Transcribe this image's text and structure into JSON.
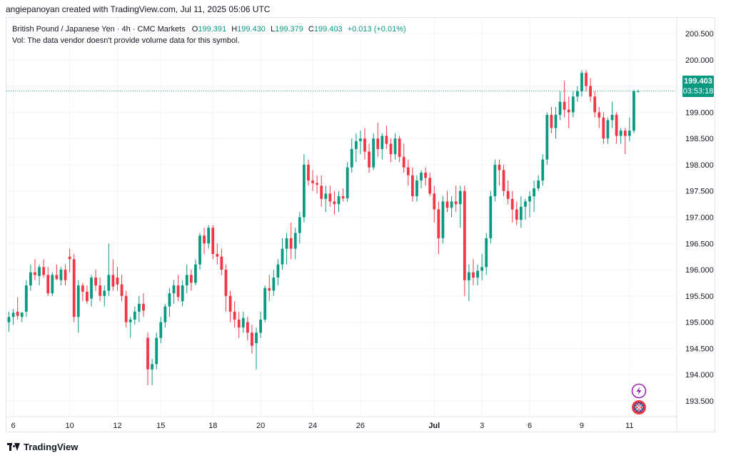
{
  "header": {
    "credit": "angiepanoyan created with TradingView.com, Jul 11, 2025 05:06 UTC"
  },
  "legend": {
    "symbol": "British Pound / Japanese Yen · 4h · CMC Markets",
    "o_label": "O",
    "open": "199.391",
    "h_label": "H",
    "high": "199.430",
    "l_label": "L",
    "low": "199.379",
    "c_label": "C",
    "close": "199.403",
    "change": "+0.013 (+0.01%)",
    "vol_note": "Vol: The data vendor doesn't provide volume data for this symbol."
  },
  "price_label": {
    "price": "199.403",
    "countdown": "03:53:18"
  },
  "footer": {
    "brand": "TradingView"
  },
  "colors": {
    "up": "#089981",
    "down": "#f23645",
    "grid": "#f0f3fa",
    "text": "#131722"
  },
  "icons": {
    "lightning": "lightning-icon",
    "flag": "uk-flag-icon"
  },
  "chart_data": {
    "type": "candlestick",
    "title": "British Pound / Japanese Yen · 4h · CMC Markets",
    "ylim": [
      193.2,
      200.8
    ],
    "y_ticks": [
      "193.500",
      "194.000",
      "194.500",
      "195.000",
      "195.500",
      "196.000",
      "196.500",
      "197.000",
      "197.500",
      "198.000",
      "198.500",
      "199.000",
      "199.500",
      "200.000",
      "200.500"
    ],
    "x_ticks": [
      {
        "label": "6",
        "i": 1
      },
      {
        "label": "10",
        "i": 14
      },
      {
        "label": "12",
        "i": 25
      },
      {
        "label": "15",
        "i": 35
      },
      {
        "label": "18",
        "i": 47
      },
      {
        "label": "20",
        "i": 58
      },
      {
        "label": "24",
        "i": 70
      },
      {
        "label": "26",
        "i": 81
      },
      {
        "label": "Jul",
        "i": 98
      },
      {
        "label": "3",
        "i": 109
      },
      {
        "label": "6",
        "i": 120
      },
      {
        "label": "9",
        "i": 132
      },
      {
        "label": "11",
        "i": 143
      }
    ],
    "last_price": 199.403,
    "candles": [
      [
        195.0,
        195.2,
        194.82,
        195.1
      ],
      [
        195.1,
        195.25,
        194.95,
        195.18
      ],
      [
        195.2,
        195.48,
        195.05,
        195.12
      ],
      [
        195.1,
        195.2,
        195.0,
        195.18
      ],
      [
        195.2,
        195.8,
        195.1,
        195.7
      ],
      [
        195.7,
        196.1,
        195.6,
        195.95
      ],
      [
        195.95,
        196.2,
        195.8,
        195.9
      ],
      [
        195.88,
        196.1,
        195.7,
        196.05
      ],
      [
        196.05,
        196.2,
        195.85,
        195.9
      ],
      [
        195.9,
        196.05,
        195.5,
        195.55
      ],
      [
        195.55,
        195.95,
        195.5,
        195.9
      ],
      [
        195.9,
        196.1,
        195.8,
        195.82
      ],
      [
        195.8,
        196.05,
        195.7,
        196.0
      ],
      [
        196.0,
        196.1,
        195.7,
        195.8
      ],
      [
        196.25,
        196.4,
        195.95,
        196.2
      ],
      [
        196.2,
        196.3,
        195.0,
        195.1
      ],
      [
        195.1,
        195.8,
        194.8,
        195.7
      ],
      [
        195.7,
        195.75,
        195.4,
        195.58
      ],
      [
        195.58,
        195.7,
        195.35,
        195.4
      ],
      [
        195.45,
        195.9,
        195.3,
        195.85
      ],
      [
        195.85,
        196.0,
        195.6,
        195.7
      ],
      [
        195.7,
        195.85,
        195.4,
        195.5
      ],
      [
        195.5,
        195.7,
        195.3,
        195.6
      ],
      [
        195.6,
        196.5,
        195.5,
        195.9
      ],
      [
        195.9,
        196.2,
        195.6,
        195.68
      ],
      [
        195.85,
        196.05,
        195.6,
        195.72
      ],
      [
        195.72,
        195.9,
        195.4,
        195.5
      ],
      [
        195.5,
        195.6,
        194.9,
        195.0
      ],
      [
        195.0,
        195.1,
        194.7,
        195.05
      ],
      [
        195.05,
        195.3,
        194.95,
        195.2
      ],
      [
        195.2,
        195.5,
        195.0,
        195.35
      ],
      [
        195.35,
        195.55,
        195.1,
        195.22
      ],
      [
        194.7,
        194.8,
        193.8,
        194.1
      ],
      [
        194.1,
        194.3,
        193.8,
        194.2
      ],
      [
        194.2,
        194.8,
        194.1,
        194.7
      ],
      [
        194.7,
        195.1,
        194.6,
        195.0
      ],
      [
        195.0,
        195.35,
        194.9,
        195.3
      ],
      [
        195.3,
        195.65,
        195.1,
        195.55
      ],
      [
        195.55,
        195.8,
        195.35,
        195.7
      ],
      [
        195.7,
        195.9,
        195.4,
        195.48
      ],
      [
        195.4,
        195.8,
        195.3,
        195.7
      ],
      [
        195.7,
        196.1,
        195.55,
        195.9
      ],
      [
        195.9,
        196.0,
        195.6,
        195.75
      ],
      [
        195.75,
        196.2,
        195.7,
        196.1
      ],
      [
        196.1,
        196.7,
        196.0,
        196.65
      ],
      [
        196.65,
        196.8,
        196.3,
        196.5
      ],
      [
        196.5,
        196.85,
        196.4,
        196.8
      ],
      [
        196.8,
        196.85,
        196.2,
        196.3
      ],
      [
        196.3,
        196.5,
        196.1,
        196.25
      ],
      [
        196.25,
        196.4,
        195.9,
        196.0
      ],
      [
        196.0,
        196.1,
        195.2,
        195.5
      ],
      [
        195.5,
        195.6,
        195.0,
        195.2
      ],
      [
        195.2,
        195.4,
        194.9,
        195.05
      ],
      [
        195.05,
        195.2,
        194.7,
        194.9
      ],
      [
        194.9,
        195.2,
        194.8,
        195.08
      ],
      [
        195.0,
        195.1,
        194.65,
        194.8
      ],
      [
        194.8,
        194.95,
        194.4,
        194.55
      ],
      [
        194.6,
        194.9,
        194.1,
        194.8
      ],
      [
        194.8,
        195.2,
        194.7,
        195.05
      ],
      [
        195.05,
        195.7,
        195.0,
        195.65
      ],
      [
        195.65,
        195.9,
        195.4,
        195.6
      ],
      [
        195.6,
        196.0,
        195.5,
        195.85
      ],
      [
        195.85,
        196.2,
        195.7,
        196.1
      ],
      [
        196.1,
        196.6,
        196.0,
        196.4
      ],
      [
        196.4,
        196.7,
        196.1,
        196.6
      ],
      [
        196.6,
        196.9,
        196.2,
        196.4
      ],
      [
        196.4,
        196.8,
        196.2,
        196.7
      ],
      [
        196.7,
        197.1,
        196.5,
        197.0
      ],
      [
        197.0,
        198.2,
        196.9,
        198.0
      ],
      [
        198.0,
        198.1,
        197.6,
        197.7
      ],
      [
        197.7,
        197.9,
        197.5,
        197.65
      ],
      [
        197.65,
        197.8,
        197.45,
        197.62
      ],
      [
        197.6,
        197.8,
        197.2,
        197.35
      ],
      [
        197.35,
        197.6,
        197.1,
        197.45
      ],
      [
        197.45,
        197.6,
        197.2,
        197.3
      ],
      [
        197.3,
        197.5,
        197.05,
        197.25
      ],
      [
        197.25,
        197.5,
        197.1,
        197.4
      ],
      [
        197.4,
        197.55,
        197.3,
        197.36
      ],
      [
        197.36,
        198.05,
        197.3,
        197.95
      ],
      [
        197.95,
        198.5,
        197.85,
        198.3
      ],
      [
        198.3,
        198.6,
        198.05,
        198.45
      ],
      [
        198.45,
        198.65,
        198.2,
        198.5
      ],
      [
        198.5,
        198.7,
        198.1,
        198.25
      ],
      [
        198.25,
        198.4,
        197.85,
        197.95
      ],
      [
        197.95,
        198.6,
        197.9,
        198.5
      ],
      [
        198.5,
        198.8,
        198.15,
        198.3
      ],
      [
        198.3,
        198.6,
        198.1,
        198.55
      ],
      [
        198.55,
        198.75,
        198.3,
        198.4
      ],
      [
        198.4,
        198.5,
        198.05,
        198.2
      ],
      [
        198.2,
        198.6,
        198.1,
        198.5
      ],
      [
        198.5,
        198.55,
        198.05,
        198.15
      ],
      [
        198.15,
        198.4,
        197.85,
        197.95
      ],
      [
        197.95,
        198.1,
        197.6,
        197.8
      ],
      [
        197.8,
        197.95,
        197.3,
        197.4
      ],
      [
        197.4,
        197.8,
        197.3,
        197.7
      ],
      [
        197.7,
        197.9,
        197.55,
        197.85
      ],
      [
        197.85,
        197.95,
        197.6,
        197.75
      ],
      [
        197.75,
        197.85,
        197.4,
        197.45
      ],
      [
        197.45,
        197.6,
        196.9,
        197.15
      ],
      [
        197.15,
        197.3,
        196.3,
        196.6
      ],
      [
        196.6,
        197.4,
        196.5,
        197.3
      ],
      [
        197.3,
        197.5,
        197.1,
        197.18
      ],
      [
        197.18,
        197.4,
        197.0,
        197.3
      ],
      [
        197.3,
        197.6,
        197.1,
        197.25
      ],
      [
        197.25,
        197.6,
        196.8,
        197.5
      ],
      [
        197.5,
        197.6,
        195.5,
        195.8
      ],
      [
        195.8,
        196.1,
        195.4,
        195.95
      ],
      [
        195.95,
        196.2,
        195.7,
        195.85
      ],
      [
        195.85,
        196.1,
        195.7,
        195.98
      ],
      [
        195.98,
        196.3,
        195.8,
        196.05
      ],
      [
        196.05,
        196.7,
        195.9,
        196.6
      ],
      [
        196.6,
        197.5,
        196.5,
        197.4
      ],
      [
        197.4,
        198.1,
        197.3,
        198.0
      ],
      [
        198.0,
        198.1,
        197.6,
        197.9
      ],
      [
        197.9,
        198.0,
        197.4,
        197.5
      ],
      [
        197.5,
        197.7,
        197.25,
        197.35
      ],
      [
        197.35,
        197.5,
        196.9,
        197.15
      ],
      [
        197.15,
        197.3,
        196.85,
        196.95
      ],
      [
        196.95,
        197.4,
        196.8,
        197.2
      ],
      [
        197.2,
        197.35,
        196.95,
        197.3
      ],
      [
        197.3,
        197.5,
        197.0,
        197.4
      ],
      [
        197.4,
        197.7,
        197.1,
        197.55
      ],
      [
        197.55,
        197.8,
        197.5,
        197.7
      ],
      [
        197.7,
        198.2,
        197.6,
        198.1
      ],
      [
        198.1,
        199.0,
        198.0,
        198.95
      ],
      [
        198.95,
        199.1,
        198.6,
        198.7
      ],
      [
        198.7,
        199.1,
        198.5,
        198.95
      ],
      [
        198.95,
        199.4,
        198.85,
        199.2
      ],
      [
        199.2,
        199.6,
        198.9,
        199.05
      ],
      [
        199.05,
        199.3,
        198.7,
        199.0
      ],
      [
        199.0,
        199.4,
        198.9,
        199.3
      ],
      [
        199.3,
        199.5,
        199.2,
        199.4
      ],
      [
        199.4,
        199.8,
        199.3,
        199.75
      ],
      [
        199.75,
        199.8,
        199.4,
        199.5
      ],
      [
        199.5,
        199.65,
        199.2,
        199.3
      ],
      [
        199.3,
        199.4,
        198.9,
        199.0
      ],
      [
        199.0,
        199.1,
        198.7,
        198.9
      ],
      [
        198.9,
        199.0,
        198.4,
        198.5
      ],
      [
        198.5,
        198.9,
        198.4,
        198.85
      ],
      [
        198.85,
        199.2,
        198.7,
        198.95
      ],
      [
        198.95,
        199.0,
        198.4,
        198.55
      ],
      [
        198.55,
        198.7,
        198.4,
        198.65
      ],
      [
        198.65,
        198.7,
        198.2,
        198.55
      ],
      [
        198.55,
        198.9,
        198.45,
        198.65
      ],
      [
        198.65,
        199.43,
        198.6,
        199.4
      ],
      [
        199.391,
        199.43,
        199.379,
        199.403
      ]
    ]
  }
}
